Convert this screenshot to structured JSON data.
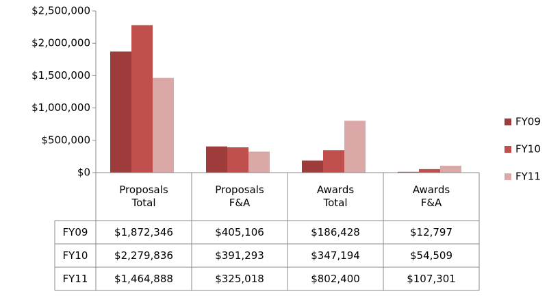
{
  "chart_data": {
    "type": "bar",
    "categories": [
      "Proposals Total",
      "Proposals F&A",
      "Awards Total",
      "Awards F&A"
    ],
    "series": [
      {
        "name": "FY09",
        "color": "#9e3b3b",
        "values": [
          1872346,
          405106,
          186428,
          12797
        ],
        "value_labels": [
          "$1,872,346",
          "$405,106",
          "$186,428",
          "$12,797"
        ]
      },
      {
        "name": "FY10",
        "color": "#c0504d",
        "values": [
          2279836,
          391293,
          347194,
          54509
        ],
        "value_labels": [
          "$2,279,836",
          "$391,293",
          "$347,194",
          "$54,509"
        ]
      },
      {
        "name": "FY11",
        "color": "#dba8a8",
        "values": [
          1464888,
          325018,
          802400,
          107301
        ],
        "value_labels": [
          "$1,464,888",
          "$325,018",
          "$802,400",
          "$107,301"
        ]
      }
    ],
    "ylim": [
      0,
      2500000
    ],
    "yticks": [
      {
        "value": 0,
        "label": "$0"
      },
      {
        "value": 500000,
        "label": "$500,000"
      },
      {
        "value": 1000000,
        "label": "$1,000,000"
      },
      {
        "value": 1500000,
        "label": "$1,500,000"
      },
      {
        "value": 2000000,
        "label": "$2,000,000"
      },
      {
        "value": 2500000,
        "label": "$2,500,000"
      }
    ],
    "legend": "right"
  }
}
